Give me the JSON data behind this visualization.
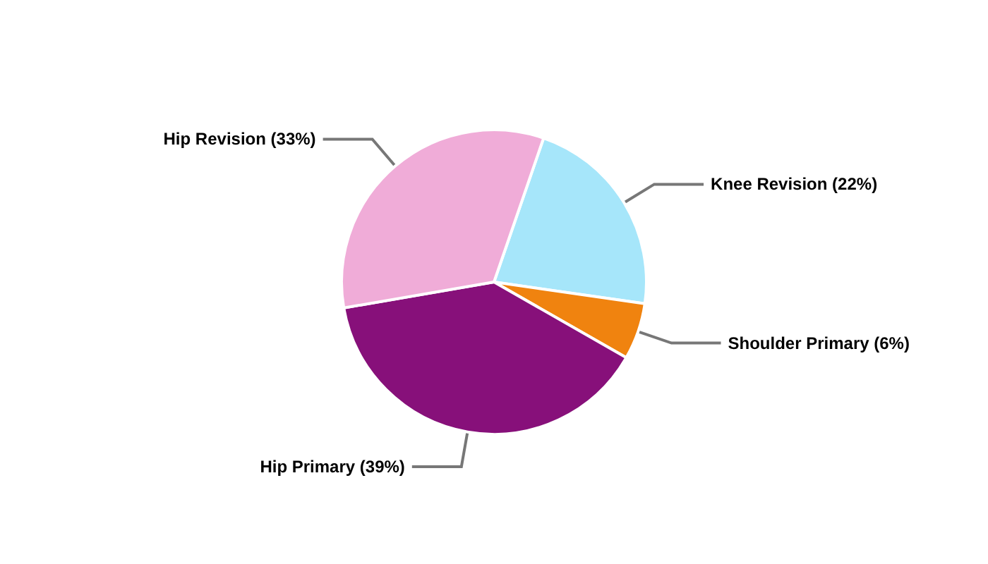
{
  "chart_data": {
    "type": "pie",
    "categories": [
      "Knee Revision (22%)",
      "Shoulder Primary (6%)",
      "Hip Primary (39%)",
      "Hip Revision (33%)"
    ],
    "values": [
      22,
      6,
      39,
      33
    ],
    "colors": [
      "#a6e6fa",
      "#f0830f",
      "#87107a",
      "#f0acd8"
    ],
    "legend": false
  }
}
